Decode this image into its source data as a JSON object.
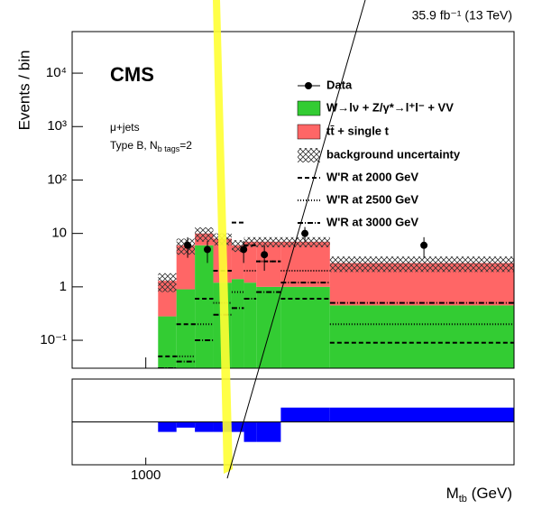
{
  "chart_data": {
    "type": "stacked-histogram",
    "lumi": "35.9 fb⁻¹ (13 TeV)",
    "experiment": "CMS",
    "channel": "μ+jets",
    "selection": [
      "Type B, N",
      "b tags",
      "=2"
    ],
    "ylabel": "Events / bin",
    "xlabel": [
      "M",
      "tb",
      " (GeV)"
    ],
    "log_y": true,
    "xlim": [
      400,
      4000
    ],
    "xticks": [
      1000
    ],
    "ylim": [
      0.03,
      60000
    ],
    "yticks": [
      {
        "value": 0.1,
        "label": "10⁻¹"
      },
      1,
      10,
      {
        "value": 100,
        "label": "10²"
      },
      {
        "value": 1000,
        "label": "10³"
      },
      {
        "value": 10000,
        "label": "10⁴"
      }
    ],
    "bins": [
      1100,
      1250,
      1400,
      1550,
      1700,
      1800,
      1900,
      2100,
      2500,
      4000
    ],
    "series": [
      {
        "name": "W→lν + Z/γ*→l⁺l⁻ + VV",
        "color": "#33cc33",
        "values": [
          0.28,
          0.9,
          6,
          1.2,
          1.4,
          1.2,
          1.0,
          1.0,
          0.45
        ]
      },
      {
        "name": "tt̄ + single t",
        "color": "#ff6666",
        "values": [
          1.02,
          5.1,
          4,
          6.8,
          4.6,
          5.8,
          6,
          6,
          2.35
        ]
      }
    ],
    "uncertainty": {
      "name": "background uncertainty",
      "values": [
        0.5,
        2,
        3,
        2,
        1.5,
        1.5,
        1.5,
        1.5,
        0.9
      ]
    },
    "signals": [
      {
        "name": "W'R at 2000 GeV",
        "dash": "5,3",
        "values": [
          0.05,
          0.2,
          0.6,
          2,
          16,
          6,
          3,
          0.6,
          0.09
        ]
      },
      {
        "name": "W'R at 2500 GeV",
        "dash": "1,2",
        "values": [
          0.03,
          0.05,
          0.2,
          0.5,
          0.8,
          2,
          3,
          2,
          0.2
        ]
      },
      {
        "name": "W'R at 3000 GeV",
        "dash": "6,2,1,2",
        "values": [
          0.03,
          0.04,
          0.1,
          0.3,
          0.4,
          0.6,
          0.8,
          1.2,
          0.5
        ]
      }
    ],
    "data": {
      "name": "Data",
      "x": [
        1341,
        1502,
        1797,
        1966,
        2296,
        3266
      ],
      "values": [
        6,
        5,
        5,
        4,
        10,
        6
      ],
      "yerr": [
        2.5,
        2.2,
        2.2,
        2,
        3.2,
        2.5
      ]
    },
    "ratio": {
      "ylim": [
        -1.5,
        1.5
      ],
      "color": "#0000ff",
      "values": [
        -0.35,
        -0.2,
        -0.35,
        -0.35,
        -0.35,
        -0.7,
        -0.7,
        0.5,
        0.5
      ]
    }
  }
}
